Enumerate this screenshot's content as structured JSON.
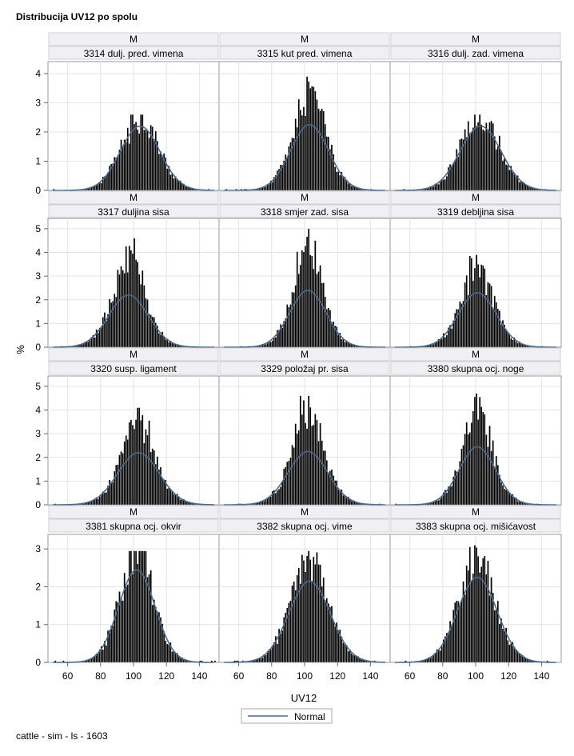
{
  "title": "Distribucija UV12 po spolu",
  "footer": "cattle - sim - ls - 1603",
  "colors": {
    "bar": "#000000",
    "curve": "#4a6a8c",
    "header_bg": "#f0f0f4",
    "grid": "#e3e3e3",
    "frame": "#999999"
  },
  "chart_data": {
    "type": "histogram-panel",
    "xlabel": "UV12",
    "ylabel": "%",
    "xlim": [
      50,
      150
    ],
    "x_ticks": [
      60,
      80,
      100,
      120,
      140
    ],
    "legend": {
      "entries": [
        "Normal"
      ],
      "position": "bottom-center"
    },
    "rows": [
      {
        "y_ticks": [
          0,
          1,
          2,
          3,
          4
        ],
        "ylim": [
          0,
          4.3
        ]
      },
      {
        "y_ticks": [
          0,
          1,
          2,
          3,
          4,
          5
        ],
        "ylim": [
          0,
          5.3
        ]
      },
      {
        "y_ticks": [
          0,
          1,
          2,
          3,
          4,
          5
        ],
        "ylim": [
          0,
          5.3
        ]
      },
      {
        "y_ticks": [
          0,
          1,
          2,
          3
        ],
        "ylim": [
          0,
          3.3
        ]
      }
    ],
    "panels": [
      {
        "sex": "M",
        "label": "3314 dulj. pred. vimena",
        "mean": 104,
        "sd": 12,
        "peak_pct": 2.2,
        "max_bar_pct": 2.6,
        "seed": 11
      },
      {
        "sex": "M",
        "label": "3315 kut pred. vimena",
        "mean": 103,
        "sd": 11.5,
        "peak_pct": 2.25,
        "max_bar_pct": 3.9,
        "seed": 22
      },
      {
        "sex": "M",
        "label": "3316 dulj. zad. vimena",
        "mean": 103,
        "sd": 12.5,
        "peak_pct": 2.2,
        "max_bar_pct": 2.6,
        "seed": 33
      },
      {
        "sex": "M",
        "label": "3317 duljina sisa",
        "mean": 97,
        "sd": 12,
        "peak_pct": 2.2,
        "max_bar_pct": 4.6,
        "seed": 44
      },
      {
        "sex": "M",
        "label": "3318 smjer zad. sisa",
        "mean": 102,
        "sd": 11,
        "peak_pct": 2.4,
        "max_bar_pct": 5.0,
        "seed": 55
      },
      {
        "sex": "M",
        "label": "3319 debljina sisa",
        "mean": 101,
        "sd": 11.5,
        "peak_pct": 2.3,
        "max_bar_pct": 3.9,
        "seed": 66
      },
      {
        "sex": "M",
        "label": "3320 susp. ligament",
        "mean": 103,
        "sd": 12.5,
        "peak_pct": 2.2,
        "max_bar_pct": 4.1,
        "seed": 77
      },
      {
        "sex": "M",
        "label": "3329 položaj pr. sisa",
        "mean": 102,
        "sd": 12,
        "peak_pct": 2.25,
        "max_bar_pct": 4.6,
        "seed": 88
      },
      {
        "sex": "M",
        "label": "3380 skupna ocj. noge",
        "mean": 101,
        "sd": 11,
        "peak_pct": 2.45,
        "max_bar_pct": 4.7,
        "seed": 99
      },
      {
        "sex": "M",
        "label": "3381 skupna ocj. okvir",
        "mean": 102,
        "sd": 11,
        "peak_pct": 2.45,
        "max_bar_pct": 2.95,
        "seed": 111
      },
      {
        "sex": "M",
        "label": "3382 skupna ocj. vime",
        "mean": 103,
        "sd": 12.5,
        "peak_pct": 2.15,
        "max_bar_pct": 2.95,
        "seed": 122
      },
      {
        "sex": "M",
        "label": "3383 skupna ocj. mišićavost",
        "mean": 101,
        "sd": 12,
        "peak_pct": 2.25,
        "max_bar_pct": 3.1,
        "seed": 133
      }
    ]
  }
}
